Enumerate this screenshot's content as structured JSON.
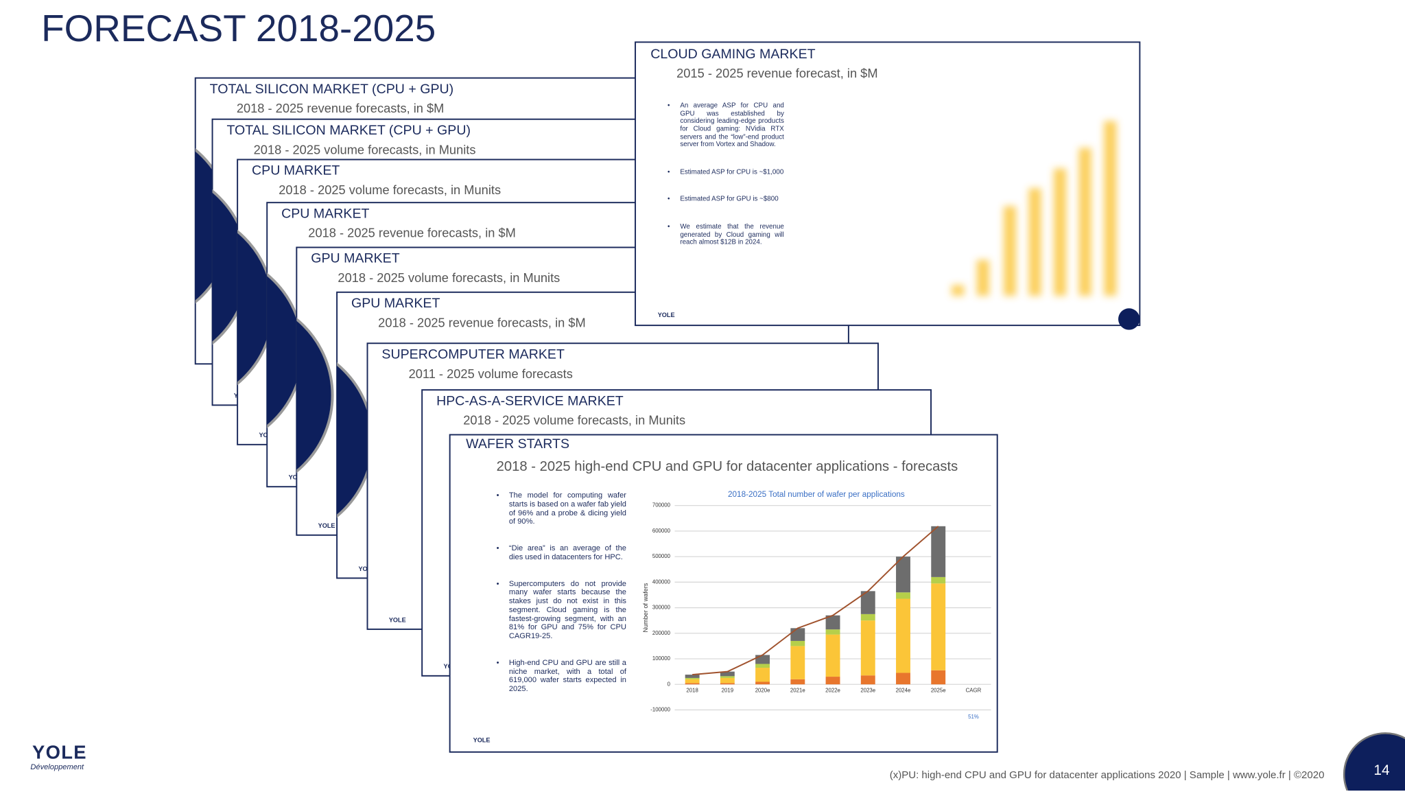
{
  "title": "FORECAST 2018-2025",
  "cards": [
    {
      "title": "TOTAL SILICON MARKET (CPU + GPU)",
      "subtitle": "2018 - 2025 revenue forecasts, in $M"
    },
    {
      "title": "TOTAL SILICON MARKET (CPU + GPU)",
      "subtitle": "2018 - 2025 volume forecasts, in Munits"
    },
    {
      "title": "CPU MARKET",
      "subtitle": "2018 - 2025 volume forecasts, in Munits"
    },
    {
      "title": "CPU MARKET",
      "subtitle": "2018 - 2025 revenue forecasts, in $M"
    },
    {
      "title": "GPU MARKET",
      "subtitle": "2018 - 2025 volume forecasts, in Munits"
    },
    {
      "title": "GPU MARKET",
      "subtitle": "2018 - 2025 revenue forecasts, in $M"
    },
    {
      "title": "SUPERCOMPUTER MARKET",
      "subtitle": "2011 - 2025 volume forecasts"
    },
    {
      "title": "HPC-AS-A-SERVICE MARKET",
      "subtitle": "2018 - 2025 volume forecasts, in Munits"
    }
  ],
  "cloud_gaming": {
    "title": "CLOUD GAMING MARKET",
    "subtitle": "2015 - 2025 revenue forecast, in $M",
    "bullets": [
      "An average ASP for CPU and GPU was established by considering leading-edge products for Cloud gaming: NVidia RTX servers and the “low”-end product server from Vortex and Shadow.",
      "Estimated ASP for CPU is ~$1,000",
      "Estimated ASP for GPU is ~$800",
      "We estimate that the revenue generated by Cloud gaming will reach almost $12B in 2024."
    ]
  },
  "wafer_starts": {
    "title": "WAFER STARTS",
    "subtitle": "2018 - 2025 high-end CPU and GPU for datacenter applications - forecasts",
    "bullets": [
      "The model for computing wafer starts is based on a wafer fab yield of 96% and a probe & dicing yield of 90%.",
      "“Die area” is an average of the dies used in datacenters for HPC.",
      "Supercomputers do not provide many wafer starts because the stakes just do not exist in this segment. Cloud gaming is the fastest-growing segment, with an 81% for GPU and 75% for CPU CAGR19-25.",
      "High-end CPU and GPU are still a niche market, with a total of 619,000 wafer starts expected in 2025."
    ]
  },
  "chart_data": {
    "type": "bar",
    "stacked": true,
    "title": "2018-2025 Total number of wafer per applications",
    "y_label": "Number of wafers",
    "categories": [
      "2018",
      "2019",
      "2020e",
      "2021e",
      "2022e",
      "2023e",
      "2024e",
      "2025e",
      "CAGR"
    ],
    "series": [
      {
        "color": "#e8762d",
        "values": [
          5000,
          5000,
          10000,
          20000,
          30000,
          35000,
          45000,
          55000,
          null
        ]
      },
      {
        "color": "#fbc538",
        "values": [
          15000,
          20000,
          55000,
          130000,
          165000,
          215000,
          290000,
          340000,
          null
        ]
      },
      {
        "color": "#b5cf4a",
        "values": [
          5000,
          7000,
          15000,
          20000,
          20000,
          25000,
          25000,
          25000,
          null
        ]
      },
      {
        "color": "#6d6d6d",
        "values": [
          13000,
          18000,
          35000,
          50000,
          55000,
          90000,
          140000,
          199000,
          null
        ]
      },
      {
        "type": "line",
        "color": "#a0522d",
        "values": [
          38000,
          50000,
          115000,
          220000,
          270000,
          365000,
          500000,
          619000,
          null
        ]
      }
    ],
    "ylim": [
      -100000,
      700000
    ],
    "yticks": [
      -100000,
      0,
      100000,
      200000,
      300000,
      400000,
      500000,
      600000,
      700000
    ],
    "grid": true,
    "annotation": "51%"
  },
  "logo": "YOLE",
  "logo_sub": "Développement",
  "footer": "(x)PU: high-end CPU and GPU for datacenter applications 2020 | Sample | www.yole.fr | ©2020",
  "page_number": 14
}
